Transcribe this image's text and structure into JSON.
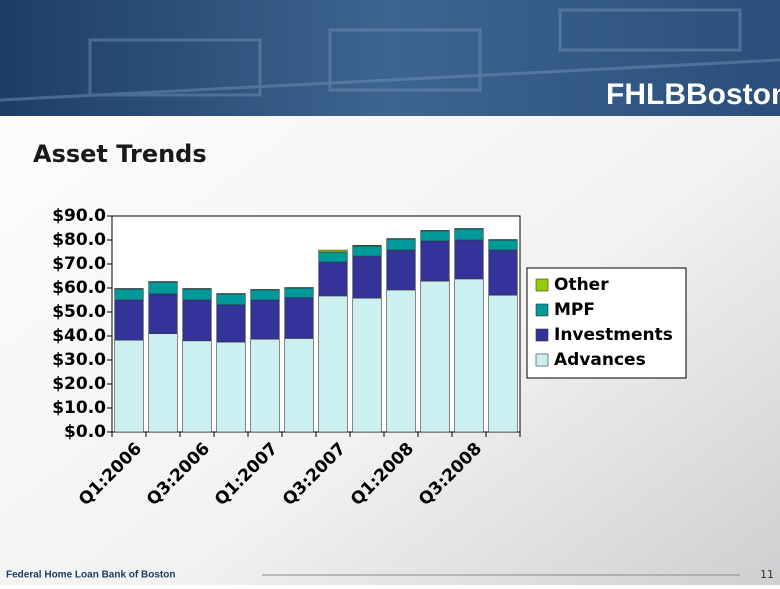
{
  "header": {
    "logo": "FHLBBoston"
  },
  "footer": {
    "organization": "Federal Home Loan Bank of Boston",
    "page": "11"
  },
  "chart_data": {
    "type": "stacked-bar",
    "title": "Asset Trends",
    "categories": [
      "Q1:2006",
      null,
      "Q3:2006",
      null,
      "Q1:2007",
      null,
      "Q3:2007",
      null,
      "Q1:2008",
      null,
      "Q3:2008",
      null
    ],
    "series": [
      {
        "name": "Advances",
        "color": "#ccf0f0",
        "values": [
          38.3,
          41,
          38,
          37.5,
          38.7,
          39,
          56.7,
          55.8,
          59.2,
          62.9,
          63.8,
          57
        ]
      },
      {
        "name": "Investments",
        "color": "#333399",
        "values": [
          16.7,
          16.5,
          17,
          15.5,
          16.3,
          17,
          14.1,
          17.5,
          16.6,
          16.7,
          16.2,
          18.8
        ]
      },
      {
        "name": "MPF",
        "color": "#009999",
        "values": [
          4.6,
          5,
          4.6,
          4.5,
          4.2,
          4,
          4.2,
          4.2,
          4.6,
          4.2,
          4.6,
          4.2
        ]
      },
      {
        "name": "Other",
        "color": "#99cc00",
        "values": [
          0.2,
          0.2,
          0.2,
          0.2,
          0.2,
          0.2,
          0.8,
          0.3,
          0.2,
          0.2,
          0.2,
          0.2
        ]
      }
    ],
    "ylim": [
      0,
      90
    ],
    "yticks": [
      {
        "value": 0,
        "label": "$0.0"
      },
      {
        "value": 10,
        "label": "$10.0"
      },
      {
        "value": 20,
        "label": "$20.0"
      },
      {
        "value": 30,
        "label": "$30.0"
      },
      {
        "value": 40,
        "label": "$40.0"
      },
      {
        "value": 50,
        "label": "$50.0"
      },
      {
        "value": 60,
        "label": "$60.0"
      },
      {
        "value": 70,
        "label": "$70.0"
      },
      {
        "value": 80,
        "label": "$80.0"
      },
      {
        "value": 90,
        "label": "$90.0"
      }
    ],
    "legend": "right"
  }
}
